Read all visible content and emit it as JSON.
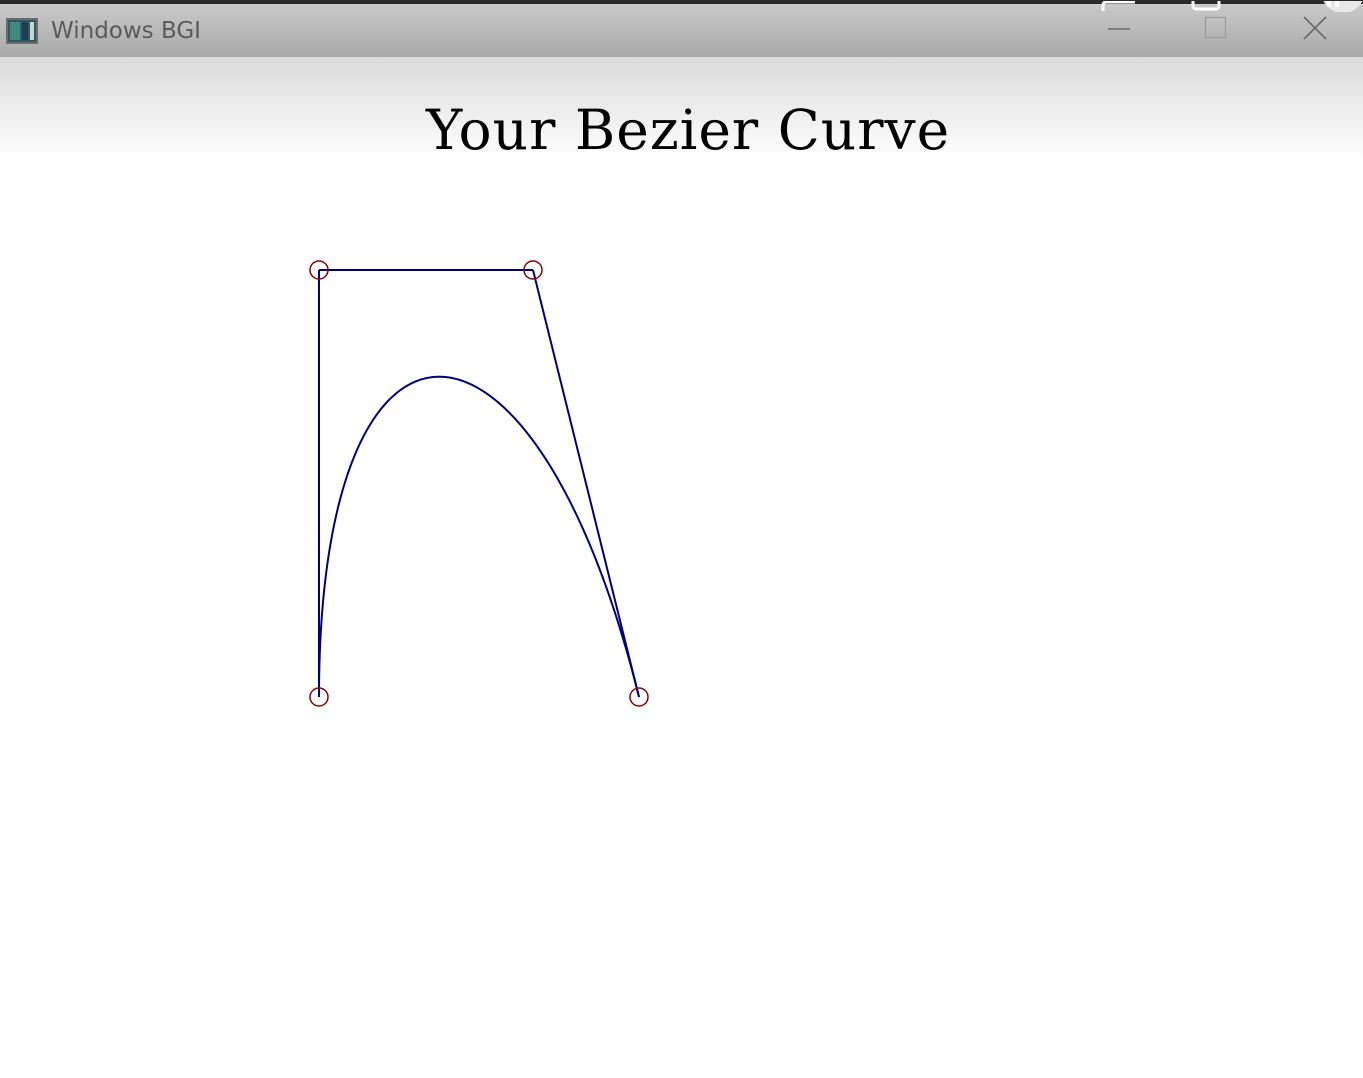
{
  "window": {
    "title": "Windows BGI",
    "app_icon": "bgi-window-icon",
    "controls": {
      "minimize_icon": "minimize-icon",
      "maximize_icon": "maximize-icon",
      "close_icon": "close-icon"
    }
  },
  "canvas": {
    "title": "Your Bezier Curve",
    "colors": {
      "control_polygon": "#00007f",
      "curve": "#00007f",
      "control_point_marker": "#8b0000",
      "background": "#ffffff",
      "title_text": "#000000"
    }
  }
}
